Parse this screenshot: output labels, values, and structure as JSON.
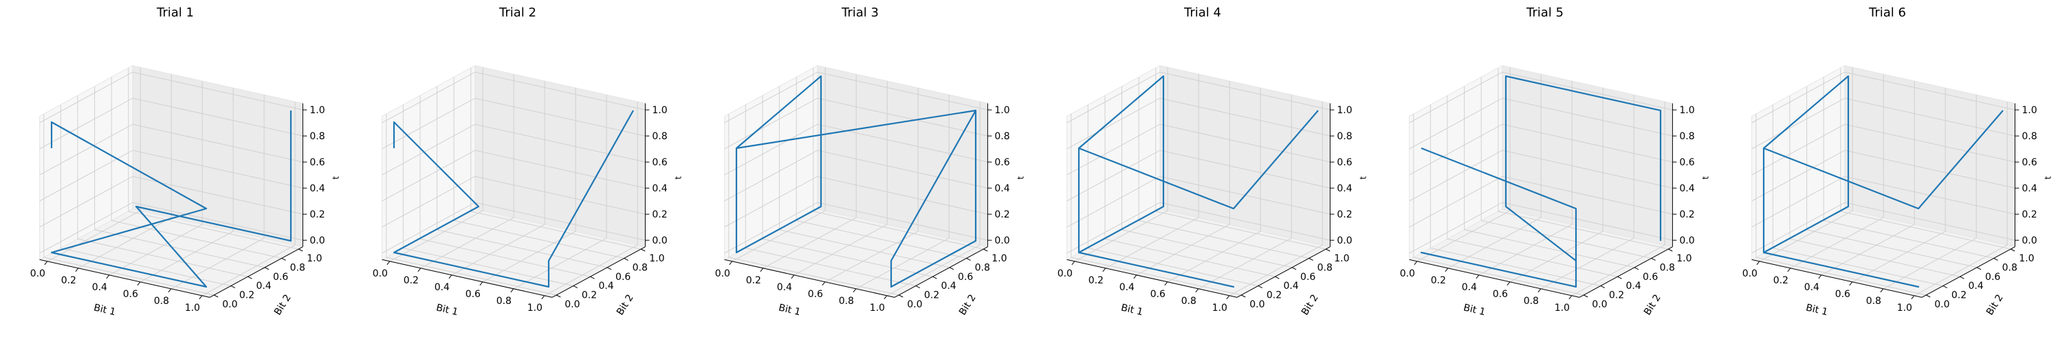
{
  "chart_data": [
    {
      "type": "line3d",
      "title": "Trial 1",
      "xlabel": "Bit 1",
      "ylabel": "Bit 2",
      "zlabel": "t",
      "xlim": [
        0,
        1
      ],
      "ylim": [
        0,
        1
      ],
      "zlim": [
        0,
        1
      ],
      "xticks": [
        "0.0",
        "0.2",
        "0.4",
        "0.6",
        "0.8",
        "1.0"
      ],
      "yticks": [
        "0.0",
        "0.2",
        "0.4",
        "0.6",
        "0.8",
        "1.0"
      ],
      "zticks": [
        "0.0",
        "0.2",
        "0.4",
        "0.6",
        "0.8",
        "1.0"
      ],
      "grid": true,
      "color": "#1f77b4",
      "points": [
        [
          0,
          0,
          0.8
        ],
        [
          0,
          0,
          1.0
        ],
        [
          1,
          0,
          0.6
        ],
        [
          0,
          0,
          0
        ],
        [
          1,
          0,
          0
        ],
        [
          0,
          1,
          0
        ],
        [
          1,
          1,
          0
        ],
        [
          1,
          1,
          1.0
        ]
      ]
    },
    {
      "type": "line3d",
      "title": "Trial 2",
      "xlabel": "Bit 1",
      "ylabel": "Bit 2",
      "zlabel": "t",
      "xlim": [
        0,
        1
      ],
      "ylim": [
        0,
        1
      ],
      "zlim": [
        0,
        1
      ],
      "xticks": [
        "0.0",
        "0.2",
        "0.4",
        "0.6",
        "0.8",
        "1.0"
      ],
      "yticks": [
        "0.0",
        "0.2",
        "0.4",
        "0.6",
        "0.8",
        "1.0"
      ],
      "zticks": [
        "0.0",
        "0.2",
        "0.4",
        "0.6",
        "0.8",
        "1.0"
      ],
      "grid": true,
      "color": "#1f77b4",
      "points": [
        [
          0,
          0,
          0.8
        ],
        [
          0,
          0,
          1.0
        ],
        [
          0,
          1,
          0
        ],
        [
          0,
          0,
          0
        ],
        [
          1,
          0,
          0
        ],
        [
          1,
          0,
          0.2
        ],
        [
          1,
          1,
          1.0
        ]
      ]
    },
    {
      "type": "line3d",
      "title": "Trial 3",
      "xlabel": "Bit 1",
      "ylabel": "Bit 2",
      "zlabel": "t",
      "xlim": [
        0,
        1
      ],
      "ylim": [
        0,
        1
      ],
      "zlim": [
        0,
        1
      ],
      "xticks": [
        "0.0",
        "0.2",
        "0.4",
        "0.6",
        "0.8",
        "1.0"
      ],
      "yticks": [
        "0.0",
        "0.2",
        "0.4",
        "0.6",
        "0.8",
        "1.0"
      ],
      "zticks": [
        "0.0",
        "0.2",
        "0.4",
        "0.6",
        "0.8",
        "1.0"
      ],
      "grid": true,
      "color": "#1f77b4",
      "points": [
        [
          0,
          0,
          0.8
        ],
        [
          0,
          0,
          0
        ],
        [
          0,
          1,
          0
        ],
        [
          0,
          1,
          1.0
        ],
        [
          0,
          0,
          0.8
        ],
        [
          1,
          1,
          1.0
        ],
        [
          1,
          1,
          0
        ],
        [
          1,
          0,
          0
        ],
        [
          1,
          0,
          0.2
        ],
        [
          1,
          1,
          1.0
        ]
      ]
    },
    {
      "type": "line3d",
      "title": "Trial 4",
      "xlabel": "Bit 1",
      "ylabel": "Bit 2",
      "zlabel": "t",
      "xlim": [
        0,
        1
      ],
      "ylim": [
        0,
        1
      ],
      "zlim": [
        0,
        1
      ],
      "xticks": [
        "0.0",
        "0.2",
        "0.4",
        "0.6",
        "0.8",
        "1.0"
      ],
      "yticks": [
        "0.0",
        "0.2",
        "0.4",
        "0.6",
        "0.8",
        "1.0"
      ],
      "zticks": [
        "0.0",
        "0.2",
        "0.4",
        "0.6",
        "0.8",
        "1.0"
      ],
      "grid": true,
      "color": "#1f77b4",
      "points": [
        [
          0,
          0,
          0.8
        ],
        [
          0,
          0,
          0
        ],
        [
          1,
          0,
          0
        ],
        [
          0,
          0,
          0
        ],
        [
          0,
          1,
          0
        ],
        [
          0,
          1,
          1.0
        ],
        [
          0,
          0,
          0.8
        ],
        [
          1,
          0,
          0.6
        ],
        [
          1,
          1,
          1.0
        ]
      ]
    },
    {
      "type": "line3d",
      "title": "Trial 5",
      "xlabel": "Bit 1",
      "ylabel": "Bit 2",
      "zlabel": "t",
      "xlim": [
        0,
        1
      ],
      "ylim": [
        0,
        1
      ],
      "zlim": [
        0,
        1
      ],
      "xticks": [
        "0.0",
        "0.2",
        "0.4",
        "0.6",
        "0.8",
        "1.0"
      ],
      "yticks": [
        "0.0",
        "0.2",
        "0.4",
        "0.6",
        "0.8",
        "1.0"
      ],
      "zticks": [
        "0.0",
        "0.2",
        "0.4",
        "0.6",
        "0.8",
        "1.0"
      ],
      "grid": true,
      "color": "#1f77b4",
      "points": [
        [
          0,
          0,
          0.8
        ],
        [
          1,
          0,
          0.6
        ],
        [
          1,
          0,
          0
        ],
        [
          0,
          0,
          0
        ],
        [
          1,
          0,
          0
        ],
        [
          1,
          0,
          0.2
        ],
        [
          0,
          1,
          0
        ],
        [
          0,
          1,
          1.0
        ],
        [
          1,
          1,
          1.0
        ],
        [
          1,
          1,
          0
        ]
      ]
    },
    {
      "type": "line3d",
      "title": "Trial 6",
      "xlabel": "Bit 1",
      "ylabel": "Bit 2",
      "zlabel": "t",
      "xlim": [
        0,
        1
      ],
      "ylim": [
        0,
        1
      ],
      "zlim": [
        0,
        1
      ],
      "xticks": [
        "0.0",
        "0.2",
        "0.4",
        "0.6",
        "0.8",
        "1.0"
      ],
      "yticks": [
        "0.0",
        "0.2",
        "0.4",
        "0.6",
        "0.8",
        "1.0"
      ],
      "zticks": [
        "0.0",
        "0.2",
        "0.4",
        "0.6",
        "0.8",
        "1.0"
      ],
      "grid": true,
      "color": "#1f77b4",
      "points": [
        [
          0,
          0,
          0.8
        ],
        [
          0,
          0,
          0
        ],
        [
          1,
          0,
          0
        ],
        [
          0,
          0,
          0
        ],
        [
          0,
          1,
          0
        ],
        [
          0,
          1,
          1.0
        ],
        [
          0,
          0,
          0.8
        ],
        [
          1,
          0,
          0.6
        ],
        [
          1,
          1,
          1.0
        ]
      ]
    }
  ]
}
